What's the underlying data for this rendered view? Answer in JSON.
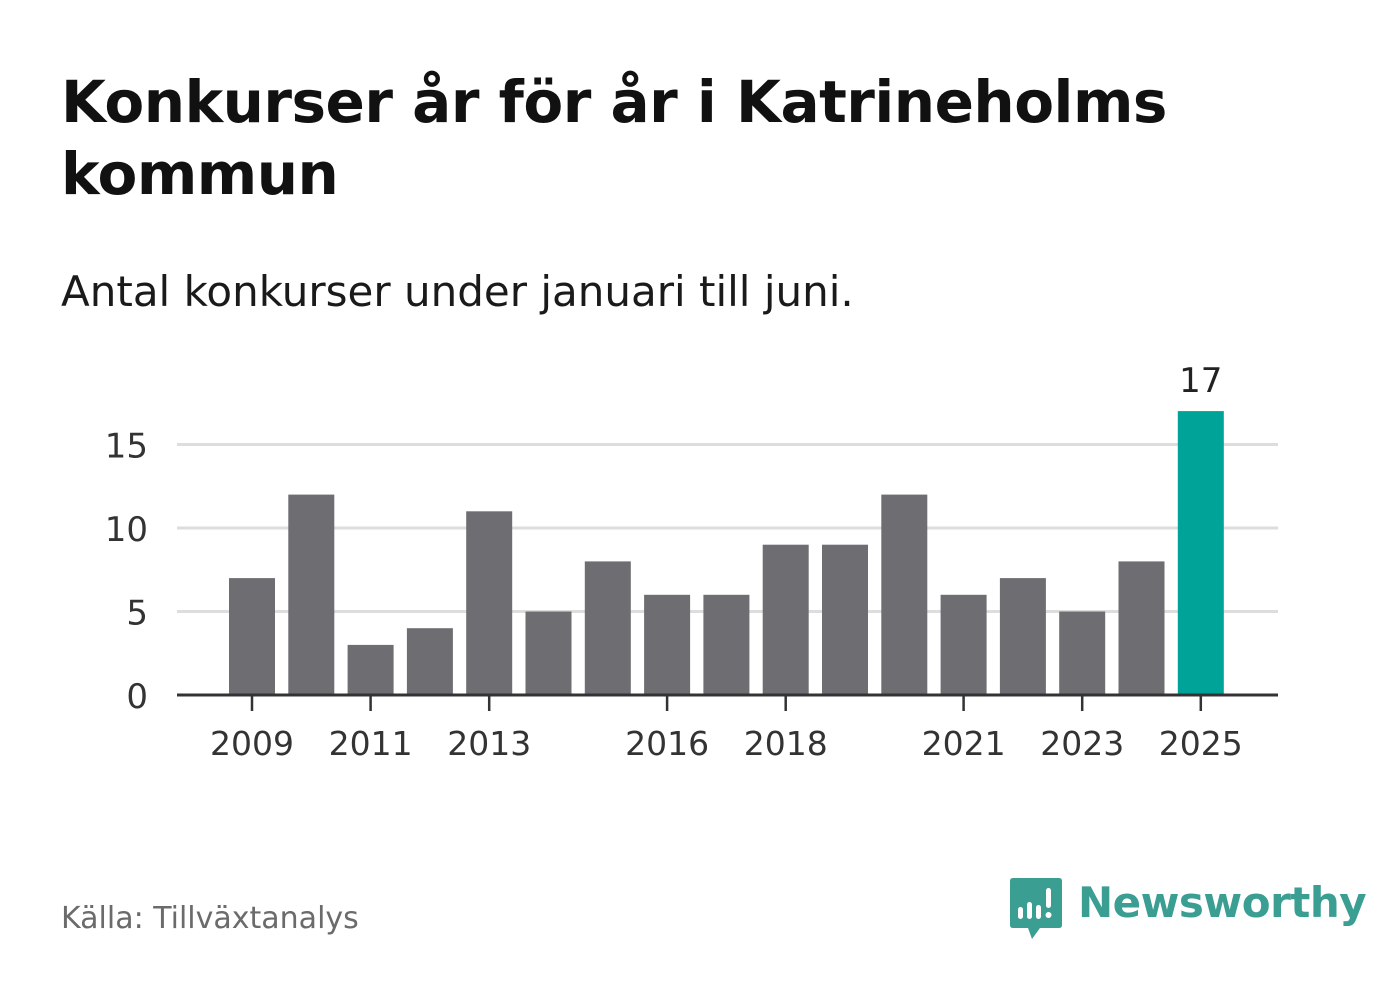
{
  "header": {
    "title": "Konkurser år för år i Katrineholms kommun",
    "subtitle": "Antal konkurser under januari till juni."
  },
  "footer": {
    "source": "Källa: Tillväxtanalys",
    "brand": "Newsworthy",
    "brand_icon": "newsworthy-chat-bars-icon"
  },
  "colors": {
    "bar": "#6e6d72",
    "highlight": "#00a398",
    "grid": "#dddddd",
    "axis": "#333333",
    "brand": "#3a9e92"
  },
  "chart_data": {
    "type": "bar",
    "categories": [
      "2009",
      "2010",
      "2011",
      "2012",
      "2013",
      "2014",
      "2015",
      "2016",
      "2017",
      "2018",
      "2019",
      "2020",
      "2021",
      "2022",
      "2023",
      "2024",
      "2025"
    ],
    "values": [
      7,
      12,
      3,
      4,
      11,
      5,
      8,
      6,
      6,
      9,
      9,
      12,
      6,
      7,
      5,
      8,
      17
    ],
    "x_tick_labels": [
      "2009",
      "2011",
      "2013",
      "2016",
      "2018",
      "2021",
      "2023",
      "2025"
    ],
    "y_ticks": [
      0,
      5,
      10,
      15
    ],
    "ylim": [
      0,
      17
    ],
    "grid": true,
    "highlight_category": "2025",
    "data_labels": [
      {
        "category": "2025",
        "label": "17"
      }
    ],
    "title": "Konkurser år för år i Katrineholms kommun",
    "subtitle": "Antal konkurser under januari till juni.",
    "xlabel": "",
    "ylabel": ""
  }
}
